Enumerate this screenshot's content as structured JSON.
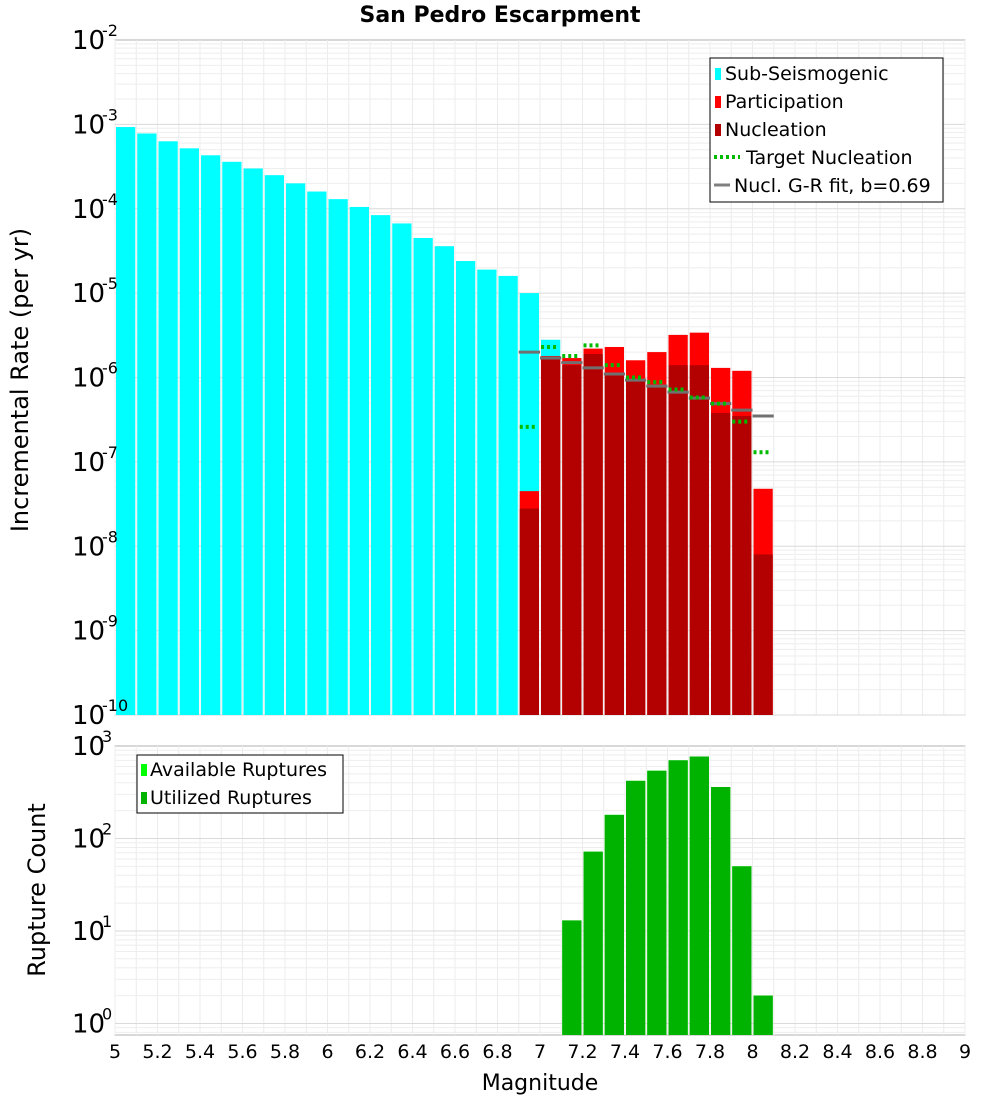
{
  "chart_data": [
    {
      "type": "bar",
      "title": "San Pedro Escarpment",
      "ylabel": "Incremental Rate (per yr)",
      "xlabel": "",
      "xlim": [
        5,
        9
      ],
      "ylim": [
        1e-10,
        0.01
      ],
      "yscale": "log",
      "grid": true,
      "legend_position": "top-right",
      "bin_width": 0.1,
      "series": [
        {
          "name": "Sub-Seismogenic",
          "color": "#00ffff",
          "style": "bar",
          "x": [
            5.05,
            5.15,
            5.25,
            5.35,
            5.45,
            5.55,
            5.65,
            5.75,
            5.85,
            5.95,
            6.05,
            6.15,
            6.25,
            6.35,
            6.45,
            6.55,
            6.65,
            6.75,
            6.85,
            6.95,
            7.05
          ],
          "values": [
            0.00093,
            0.00078,
            0.00063,
            0.00052,
            0.00043,
            0.00036,
            0.0003,
            0.00025,
            0.0002,
            0.00016,
            0.00013,
            0.000105,
            8.4e-05,
            6.7e-05,
            4.5e-05,
            3.6e-05,
            2.4e-05,
            1.9e-05,
            1.6e-05,
            1e-05,
            2.8e-06
          ]
        },
        {
          "name": "Participation",
          "color": "#ff0000",
          "style": "bar",
          "x": [
            6.95,
            7.05,
            7.15,
            7.25,
            7.35,
            7.45,
            7.55,
            7.65,
            7.75,
            7.85,
            7.95,
            8.05
          ],
          "values": [
            4.5e-08,
            1.8e-06,
            1.7e-06,
            2.2e-06,
            2.3e-06,
            1.6e-06,
            2e-06,
            3.2e-06,
            3.4e-06,
            1.3e-06,
            1.2e-06,
            4.8e-08
          ]
        },
        {
          "name": "Nucleation",
          "color": "#b30000",
          "style": "bar",
          "x": [
            6.95,
            7.05,
            7.15,
            7.25,
            7.35,
            7.45,
            7.55,
            7.65,
            7.75,
            7.85,
            7.95,
            8.05
          ],
          "values": [
            2.8e-08,
            1.7e-06,
            1.4e-06,
            1.9e-06,
            1.1e-06,
            9e-07,
            8e-07,
            1.4e-06,
            1.4e-06,
            3.8e-07,
            3.5e-07,
            8e-09
          ]
        },
        {
          "name": "Target Nucleation",
          "color": "#00bb00",
          "style": "dotted-step",
          "x": [
            6.95,
            7.05,
            7.15,
            7.25,
            7.35,
            7.45,
            7.55,
            7.65,
            7.75,
            7.85,
            7.95,
            8.05
          ],
          "values": [
            2.6e-07,
            2.3e-06,
            1.8e-06,
            2.4e-06,
            1.4e-06,
            1e-06,
            8.8e-07,
            7.2e-07,
            5.8e-07,
            4.9e-07,
            3e-07,
            1.3e-07
          ]
        },
        {
          "name": "Nucl. G-R fit, b=0.69",
          "color": "#808080",
          "style": "step",
          "x": [
            6.95,
            7.05,
            7.15,
            7.25,
            7.35,
            7.45,
            7.55,
            7.65,
            7.75,
            7.85,
            7.95,
            8.05
          ],
          "values": [
            2e-06,
            1.7e-06,
            1.5e-06,
            1.3e-06,
            1.1e-06,
            9.3e-07,
            7.9e-07,
            6.7e-07,
            5.7e-07,
            4.9e-07,
            4.1e-07,
            3.5e-07
          ]
        }
      ]
    },
    {
      "type": "bar",
      "title": "",
      "ylabel": "Rupture Count",
      "xlabel": "Magnitude",
      "xlim": [
        5,
        9
      ],
      "ylim": [
        0.75,
        1000
      ],
      "yscale": "log",
      "grid": true,
      "legend_position": "top-left",
      "bin_width": 0.1,
      "categories_x": [
        "5",
        "5.2",
        "5.4",
        "5.6",
        "5.8",
        "6",
        "6.2",
        "6.4",
        "6.6",
        "6.8",
        "7",
        "7.2",
        "7.4",
        "7.6",
        "7.8",
        "8",
        "8.2",
        "8.4",
        "8.6",
        "8.8",
        "9"
      ],
      "series": [
        {
          "name": "Available Ruptures",
          "color": "#00ff00",
          "style": "bar",
          "x": [
            7.15,
            7.25,
            7.35,
            7.45,
            7.55,
            7.65,
            7.75,
            7.85,
            7.95,
            8.05
          ],
          "values": [
            13,
            72,
            180,
            420,
            540,
            700,
            770,
            360,
            50,
            2
          ]
        },
        {
          "name": "Utilized Ruptures",
          "color": "#00b300",
          "style": "bar",
          "x": [
            7.15,
            7.25,
            7.35,
            7.45,
            7.55,
            7.65,
            7.75,
            7.85,
            7.95,
            8.05
          ],
          "values": [
            13,
            72,
            180,
            420,
            540,
            700,
            770,
            360,
            50,
            2
          ]
        }
      ]
    }
  ],
  "top_y_ticks": {
    "base": "10",
    "exponents": [
      "-2",
      "-3",
      "-4",
      "-5",
      "-6",
      "-7",
      "-8",
      "-9",
      "-10"
    ]
  },
  "bottom_y_ticks": {
    "base": "10",
    "exponents": [
      "3",
      "2",
      "1",
      "0"
    ]
  }
}
